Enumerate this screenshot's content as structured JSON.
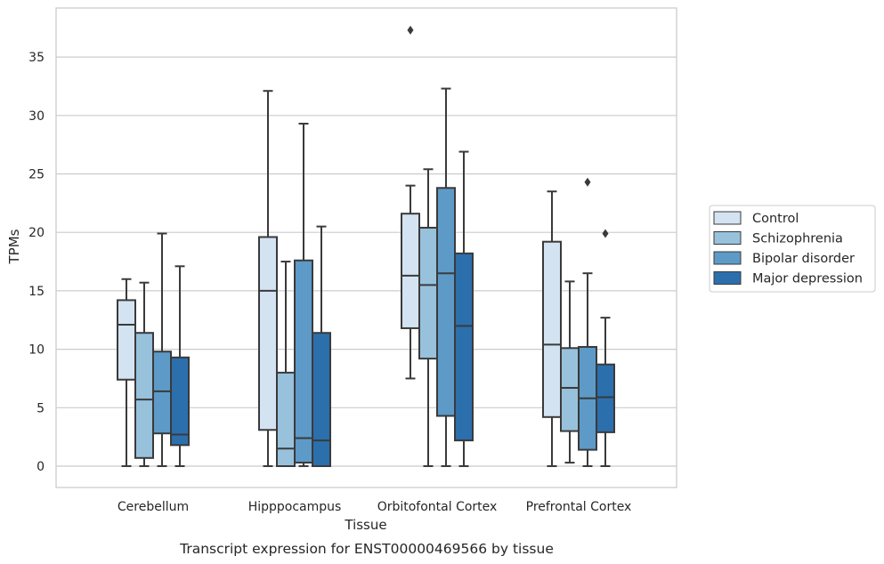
{
  "caption": "Transcript expression for ENST00000469566 by tissue",
  "chart_data": {
    "type": "box",
    "xlabel": "Tissue",
    "ylabel": "TPMs",
    "ylim": [
      -1.7,
      39.2
    ],
    "yticks": [
      0,
      5,
      10,
      15,
      20,
      25,
      30,
      35
    ],
    "grid": "horizontal",
    "legend_placement": "right",
    "categories": [
      "Cerebellum",
      "Hipppocampus",
      "Orbitofontal Cortex",
      "Prefrontal Cortex"
    ],
    "series": [
      {
        "name": "Control",
        "color": "#d4e3f2",
        "boxes": [
          {
            "whisker_low": 0,
            "q1": 7.4,
            "median": 12.1,
            "q3": 14.2,
            "whisker_high": 16.0,
            "outliers": []
          },
          {
            "whisker_low": 0,
            "q1": 3.1,
            "median": 15.0,
            "q3": 19.6,
            "whisker_high": 32.1,
            "outliers": []
          },
          {
            "whisker_low": 7.5,
            "q1": 11.8,
            "median": 16.3,
            "q3": 21.6,
            "whisker_high": 24.0,
            "outliers": [
              37.3
            ]
          },
          {
            "whisker_low": 0,
            "q1": 4.2,
            "median": 10.4,
            "q3": 19.2,
            "whisker_high": 23.5,
            "outliers": []
          }
        ]
      },
      {
        "name": "Schizophrenia",
        "color": "#98c1dc",
        "boxes": [
          {
            "whisker_low": 0,
            "q1": 0.7,
            "median": 5.7,
            "q3": 11.4,
            "whisker_high": 15.7,
            "outliers": []
          },
          {
            "whisker_low": 0,
            "q1": 0,
            "median": 1.5,
            "q3": 8.0,
            "whisker_high": 17.5,
            "outliers": []
          },
          {
            "whisker_low": 0,
            "q1": 9.2,
            "median": 15.5,
            "q3": 20.4,
            "whisker_high": 25.4,
            "outliers": []
          },
          {
            "whisker_low": 0.3,
            "q1": 3.0,
            "median": 6.7,
            "q3": 10.1,
            "whisker_high": 15.8,
            "outliers": []
          }
        ]
      },
      {
        "name": "Bipolar disorder",
        "color": "#5d9ac7",
        "boxes": [
          {
            "whisker_low": 0,
            "q1": 2.8,
            "median": 6.4,
            "q3": 9.8,
            "whisker_high": 19.9,
            "outliers": []
          },
          {
            "whisker_low": 0,
            "q1": 0.3,
            "median": 2.4,
            "q3": 17.6,
            "whisker_high": 29.3,
            "outliers": []
          },
          {
            "whisker_low": 0,
            "q1": 4.3,
            "median": 16.5,
            "q3": 23.8,
            "whisker_high": 32.3,
            "outliers": []
          },
          {
            "whisker_low": 0,
            "q1": 1.4,
            "median": 5.8,
            "q3": 10.2,
            "whisker_high": 16.5,
            "outliers": [
              24.3
            ]
          }
        ]
      },
      {
        "name": "Major depression",
        "color": "#2c6fad",
        "boxes": [
          {
            "whisker_low": 0,
            "q1": 1.8,
            "median": 2.7,
            "q3": 9.3,
            "whisker_high": 17.1,
            "outliers": []
          },
          {
            "whisker_low": 0,
            "q1": 0,
            "median": 2.2,
            "q3": 11.4,
            "whisker_high": 20.5,
            "outliers": []
          },
          {
            "whisker_low": 0,
            "q1": 2.2,
            "median": 12.0,
            "q3": 18.2,
            "whisker_high": 26.9,
            "outliers": []
          },
          {
            "whisker_low": 0,
            "q1": 2.9,
            "median": 5.9,
            "q3": 8.7,
            "whisker_high": 12.7,
            "outliers": [
              19.9
            ]
          }
        ]
      }
    ]
  }
}
